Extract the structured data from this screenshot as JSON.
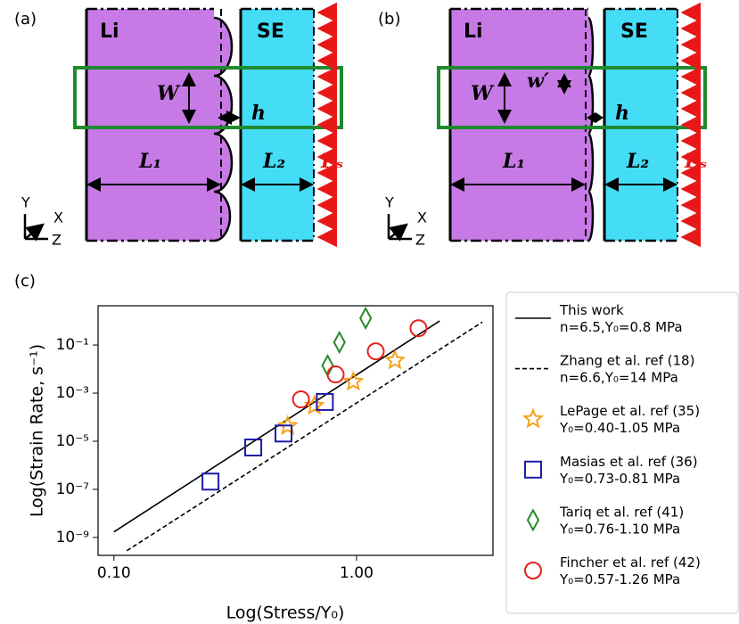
{
  "panels": [
    {
      "label": "(a)",
      "li": "Li",
      "se": "SE",
      "w": "W",
      "h": "h",
      "l1": "L₁",
      "l2": "L₂",
      "ps": "Pₛ",
      "axes": [
        "Y",
        "X",
        "Z"
      ]
    },
    {
      "label": "(b)",
      "li": "Li",
      "se": "SE",
      "w": "W",
      "w2": "w′",
      "h": "h",
      "l1": "L₁",
      "l2": "L₂",
      "ps": "Pₛ",
      "axes": [
        "Y",
        "X",
        "Z"
      ]
    }
  ],
  "chart_data": {
    "type": "scatter",
    "label": "(c)",
    "x_label": "Log(Stress/Y₀)",
    "y_label": "Log(Strain Rate, s⁻¹)",
    "x_scale": "log",
    "y_scale": "log",
    "xlim": [
      0.086,
      3.65
    ],
    "ylim": [
      1.8e-10,
      4.3
    ],
    "xticks": [
      {
        "value": 0.1,
        "label": "0.10"
      },
      {
        "value": 1,
        "label": "1.00"
      }
    ],
    "yticks": [
      {
        "value": 1e-09,
        "label": "10⁻⁹"
      },
      {
        "value": 1e-07,
        "label": "10⁻⁷"
      },
      {
        "value": 1e-05,
        "label": "10⁻⁵"
      },
      {
        "value": 0.001,
        "label": "10⁻³"
      },
      {
        "value": 0.1,
        "label": "10⁻¹"
      }
    ],
    "legend": "outside-right",
    "series": [
      {
        "name": "This work\nn=6.5,Y₀=0.8 MPa",
        "type": "line",
        "style": "solid",
        "color": "#000000",
        "x": [
          0.1,
          2.2
        ],
        "values": [
          1.7e-09,
          1.0
        ]
      },
      {
        "name": "Zhang et al. ref (18)\nn=6.6,Y₀=14 MPa",
        "type": "line",
        "style": "dashed",
        "color": "#000000",
        "x": [
          0.113,
          3.3
        ],
        "values": [
          2.8e-10,
          0.9
        ]
      },
      {
        "name": "LePage et al. ref (35)\nY₀=0.40-1.05 MPa",
        "type": "scatter",
        "marker": "star",
        "color": "#f5a31a",
        "x": [
          0.52,
          0.67,
          0.97,
          1.44
        ],
        "values": [
          4.3e-05,
          0.0003,
          0.003,
          0.023
        ]
      },
      {
        "name": "Masias et al. ref (36)\nY₀=0.73-0.81 MPa",
        "type": "scatter",
        "marker": "square",
        "color": "#1c1ca8",
        "x": [
          0.25,
          0.375,
          0.5,
          0.74
        ],
        "values": [
          2.1e-07,
          5.5e-06,
          2.1e-05,
          0.00043
        ]
      },
      {
        "name": "Tariq et al. ref (41)\nY₀=0.76-1.10 MPa",
        "type": "scatter",
        "marker": "diamond",
        "color": "#2a8a2a",
        "x": [
          0.76,
          0.85,
          1.09
        ],
        "values": [
          0.014,
          0.13,
          1.3
        ]
      },
      {
        "name": "Fincher et al. ref (42)\nY₀=0.57-1.26 MPa",
        "type": "scatter",
        "marker": "circle",
        "color": "#e8201a",
        "x": [
          0.59,
          0.82,
          1.2,
          1.8
        ],
        "values": [
          0.00055,
          0.006,
          0.055,
          0.5
        ]
      }
    ]
  }
}
